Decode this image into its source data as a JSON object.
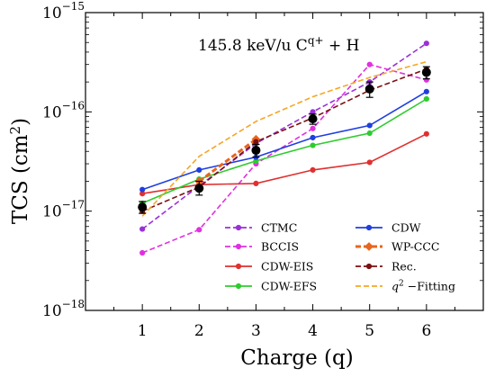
{
  "chart_data": {
    "type": "line",
    "title": "",
    "annotation": {
      "text": "145.8 keV/u C",
      "sup": "q+",
      "suffix": " + H"
    },
    "xlabel": "Charge (q)",
    "ylabel": "TCS (cm",
    "ylabel_sup": "2",
    "ylabel_suffix": ")",
    "x": [
      1,
      2,
      3,
      4,
      5,
      6
    ],
    "xticks": [
      "1",
      "2",
      "3",
      "4",
      "5",
      "6"
    ],
    "xlim": [
      0,
      7
    ],
    "yscale": "log",
    "ylim": [
      1e-18,
      1e-15
    ],
    "yticks": [
      {
        "value": 1e-18,
        "base": "10",
        "exp": "−18"
      },
      {
        "value": 1e-17,
        "base": "10",
        "exp": "−17"
      },
      {
        "value": 1e-16,
        "base": "10",
        "exp": "−16"
      },
      {
        "value": 1e-15,
        "base": "10",
        "exp": "−15"
      }
    ],
    "grid": false,
    "legend_position": "bottom-right",
    "series": [
      {
        "name": "CTMC",
        "color": "#9b30d8",
        "dash": "dashed",
        "marker": "circle",
        "values": [
          6.6e-18,
          1.8e-17,
          4.8e-17,
          1e-16,
          2e-16,
          4.9e-16
        ]
      },
      {
        "name": "BCCIS",
        "color": "#e030e0",
        "dash": "dashed",
        "marker": "circle",
        "values": [
          3.8e-18,
          6.5e-18,
          3e-17,
          6.8e-17,
          3e-16,
          2.1e-16
        ]
      },
      {
        "name": "CDW-EIS",
        "color": "#e03030",
        "dash": "solid",
        "marker": "circle",
        "values": [
          1.5e-17,
          1.85e-17,
          1.9e-17,
          2.6e-17,
          3.1e-17,
          6e-17
        ]
      },
      {
        "name": "CDW-EFS",
        "color": "#2ecc2e",
        "dash": "solid",
        "marker": "circle",
        "values": [
          1.2e-17,
          2.1e-17,
          3.2e-17,
          4.6e-17,
          6.1e-17,
          1.35e-16
        ]
      },
      {
        "name": "CDW",
        "color": "#1f3fe0",
        "dash": "solid",
        "marker": "circle",
        "values": [
          1.65e-17,
          2.6e-17,
          3.5e-17,
          5.5e-17,
          7.3e-17,
          1.6e-16
        ]
      },
      {
        "name": "WP-CCC",
        "color": "#e8651c",
        "dash": "dashed",
        "marker": "diamond",
        "values": [
          null,
          2e-17,
          5.3e-17,
          null,
          null,
          null
        ]
      },
      {
        "name": "Rec.",
        "color": "#7a1010",
        "dash": "dashed",
        "marker": "circle",
        "values": [
          1e-17,
          1.75e-17,
          5e-17,
          8.7e-17,
          1.65e-16,
          2.7e-16
        ]
      },
      {
        "name": "Fitting",
        "label_prefix": "q",
        "label_sup": "2",
        "label_suffix": " −Fitting",
        "color": "#f5a623",
        "dash": "dashed",
        "marker": "none",
        "values": [
          8.9e-18,
          3.56e-17,
          8e-17,
          1.42e-16,
          2.22e-16,
          3.2e-16
        ]
      }
    ],
    "experiment": {
      "color": "#000000",
      "marker": "filled-circle",
      "values": [
        1.1e-17,
        1.7e-17,
        4.1e-17,
        8.5e-17,
        1.7e-16,
        2.5e-16
      ],
      "err_low": [
        9.5e-18,
        1.45e-17,
        3.5e-17,
        7.5e-17,
        1.4e-16,
        2.15e-16
      ],
      "err_high": [
        1.25e-17,
        2e-17,
        4.7e-17,
        9.5e-17,
        2e-16,
        2.85e-16
      ]
    }
  }
}
